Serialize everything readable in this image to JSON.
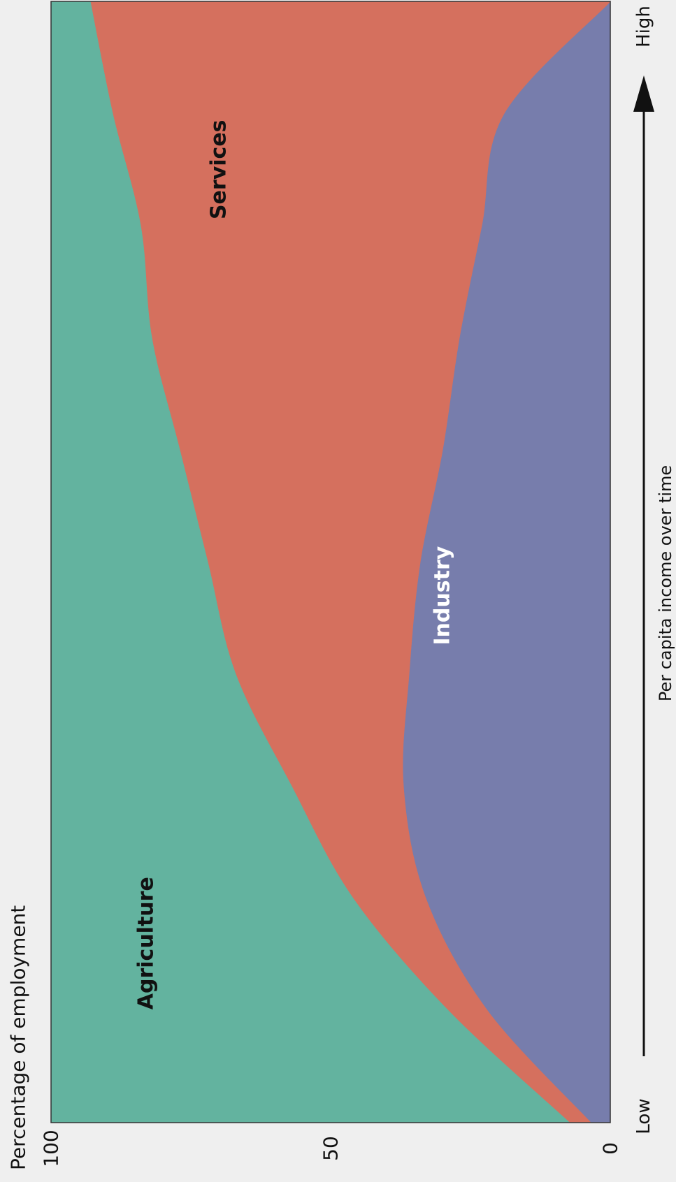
{
  "chart_data": {
    "type": "area",
    "stacked": true,
    "orientation": "rotated-90-clockwise",
    "ylabel": "Percentage of employment",
    "xlabel": "Per capita income over time",
    "x_start_label": "Low",
    "x_end_label": "High",
    "ylim": [
      0,
      100
    ],
    "yticks": [
      "0",
      "50",
      "100"
    ],
    "x": [
      0,
      10,
      20,
      30,
      40,
      50,
      60,
      70,
      80,
      90,
      100
    ],
    "series": [
      {
        "name": "Industry",
        "color": "#777dac",
        "label_color": "#ffffff",
        "label_x": 47,
        "label_y": 30,
        "values": [
          3.5,
          22,
          33,
          37,
          36,
          34,
          30,
          27,
          23,
          19,
          0
        ]
      },
      {
        "name": "Services",
        "color": "#d5705e",
        "label_color": "#111111",
        "label_x": 85,
        "label_y": 70,
        "values": [
          3.8,
          7,
          13,
          20,
          31,
          38,
          47,
          55,
          61,
          70,
          93
        ]
      },
      {
        "name": "Agriculture",
        "color": "#63b39f",
        "label_color": "#111111",
        "label_x": 16,
        "label_y": 83,
        "values": [
          92.7,
          71,
          54,
          43,
          33,
          28,
          23,
          18,
          16,
          11,
          7
        ]
      }
    ],
    "grid": false,
    "legend": "none"
  }
}
